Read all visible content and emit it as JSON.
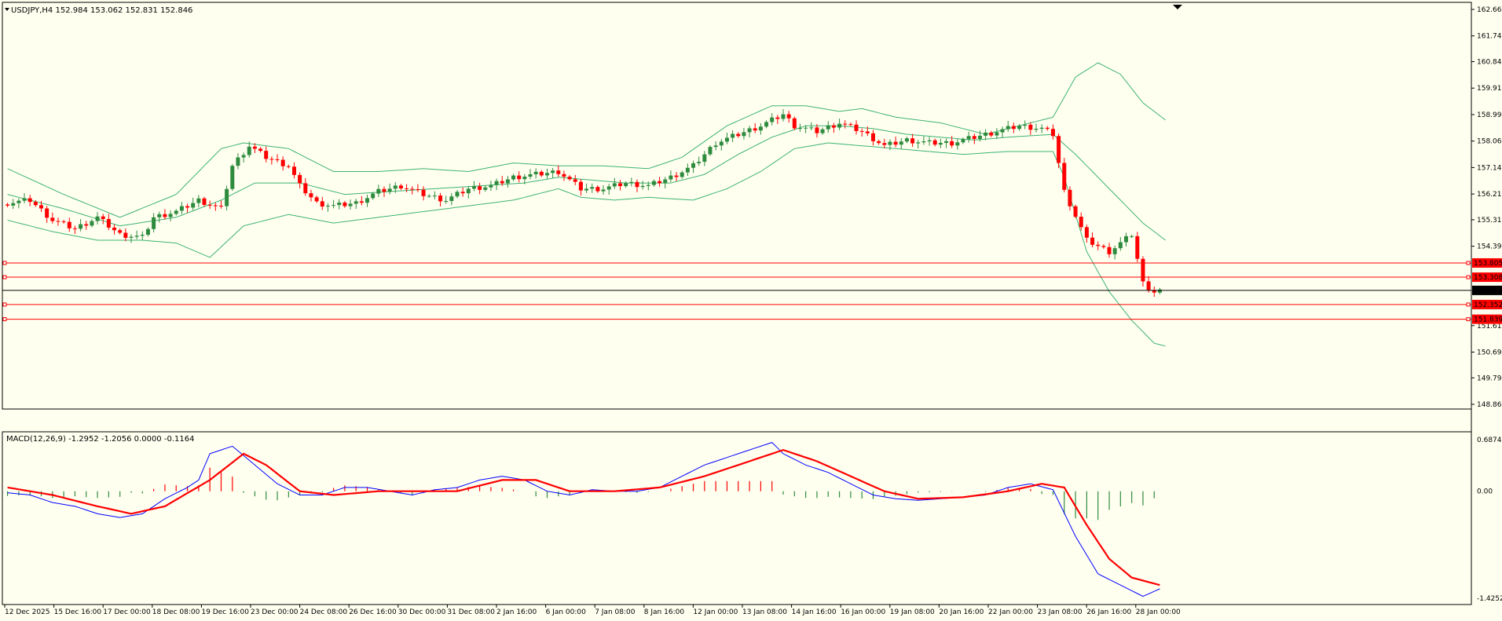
{
  "symbol_header": {
    "symbol": "USDJPY,H4",
    "ohlc": "152.984 153.062 152.831 152.846",
    "text": "USDJPY,H4  152.984 153.062 152.831 152.846"
  },
  "macd_header": {
    "text": "MACD(12,26,9) -1.2952 -1.2056 0.0000 -0.1164"
  },
  "colors": {
    "background": "#FFFFF0",
    "bull": "#2E8B3E",
    "bear": "#FF0000",
    "bands": "#3CB371",
    "macd_main": "#0000FF",
    "macd_signal": "#FF0000",
    "level_line": "#FF0000",
    "current_price_line": "#000000"
  },
  "chart_data": [
    {
      "type": "candlestick",
      "title": "USDJPY,H4",
      "ylim": [
        148.865,
        162.665
      ],
      "y_ticks": [
        "162.665",
        "161.740",
        "160.840",
        "159.915",
        "158.990",
        "158.065",
        "157.140",
        "156.215",
        "155.315",
        "154.390",
        "151.615",
        "150.690",
        "149.790",
        "148.865"
      ],
      "x_tick_labels": [
        "12 Dec 2025",
        "15 Dec 16:00",
        "17 Dec 00:00",
        "18 Dec 08:00",
        "19 Dec 16:00",
        "23 Dec 00:00",
        "24 Dec 08:00",
        "26 Dec 16:00",
        "30 Dec 00:00",
        "31 Dec 08:00",
        "2 Jan 16:00",
        "6 Jan 00:00",
        "7 Jan 08:00",
        "8 Jan 16:00",
        "12 Jan 00:00",
        "13 Jan 08:00",
        "14 Jan 16:00",
        "16 Jan 00:00",
        "19 Jan 08:00",
        "20 Jan 16:00",
        "22 Jan 00:00",
        "23 Jan 08:00",
        "26 Jan 16:00",
        "28 Jan 00:00"
      ],
      "current_price": {
        "value": 152.846,
        "label": "152.846"
      },
      "levels": [
        {
          "value": 153.805,
          "label": "153.805"
        },
        {
          "value": 153.308,
          "label": "153.308"
        },
        {
          "value": 152.352,
          "label": "152.352"
        },
        {
          "value": 151.839,
          "label": "151.839"
        }
      ],
      "close_path": [
        [
          0,
          155.9
        ],
        [
          4,
          156.0
        ],
        [
          8,
          155.3
        ],
        [
          12,
          155.0
        ],
        [
          16,
          155.4
        ],
        [
          20,
          154.8
        ],
        [
          24,
          154.7
        ],
        [
          26,
          155.4
        ],
        [
          30,
          155.6
        ],
        [
          34,
          156.0
        ],
        [
          38,
          155.7
        ],
        [
          40,
          157.2
        ],
        [
          43,
          157.9
        ],
        [
          46,
          157.5
        ],
        [
          50,
          157.2
        ],
        [
          52,
          156.5
        ],
        [
          55,
          155.9
        ],
        [
          58,
          155.8
        ],
        [
          62,
          155.9
        ],
        [
          66,
          156.3
        ],
        [
          70,
          156.5
        ],
        [
          74,
          156.2
        ],
        [
          78,
          156.0
        ],
        [
          82,
          156.4
        ],
        [
          86,
          156.5
        ],
        [
          90,
          156.8
        ],
        [
          94,
          156.9
        ],
        [
          98,
          157.0
        ],
        [
          102,
          156.4
        ],
        [
          106,
          156.4
        ],
        [
          110,
          156.6
        ],
        [
          114,
          156.5
        ],
        [
          118,
          156.8
        ],
        [
          122,
          157.2
        ],
        [
          126,
          158.0
        ],
        [
          130,
          158.3
        ],
        [
          134,
          158.6
        ],
        [
          138,
          159.0
        ],
        [
          140,
          158.6
        ],
        [
          144,
          158.4
        ],
        [
          148,
          158.7
        ],
        [
          152,
          158.4
        ],
        [
          156,
          157.9
        ],
        [
          160,
          158.1
        ],
        [
          164,
          158.0
        ],
        [
          168,
          158.0
        ],
        [
          172,
          158.2
        ],
        [
          176,
          158.4
        ],
        [
          180,
          158.6
        ],
        [
          184,
          158.5
        ],
        [
          186,
          158.3
        ],
        [
          188,
          156.3
        ],
        [
          192,
          154.6
        ],
        [
          196,
          154.2
        ],
        [
          200,
          154.8
        ],
        [
          202,
          153.1
        ],
        [
          204,
          152.8
        ],
        [
          205,
          152.846
        ]
      ],
      "bollinger_upper_path": [
        [
          0,
          157.1
        ],
        [
          10,
          156.2
        ],
        [
          20,
          155.4
        ],
        [
          30,
          156.2
        ],
        [
          38,
          157.8
        ],
        [
          42,
          158.0
        ],
        [
          50,
          157.8
        ],
        [
          58,
          157.0
        ],
        [
          66,
          157.0
        ],
        [
          74,
          157.1
        ],
        [
          82,
          157.0
        ],
        [
          90,
          157.3
        ],
        [
          98,
          157.2
        ],
        [
          106,
          157.2
        ],
        [
          114,
          157.1
        ],
        [
          120,
          157.5
        ],
        [
          128,
          158.6
        ],
        [
          136,
          159.3
        ],
        [
          142,
          159.3
        ],
        [
          148,
          159.1
        ],
        [
          152,
          159.2
        ],
        [
          158,
          158.9
        ],
        [
          166,
          158.7
        ],
        [
          174,
          158.3
        ],
        [
          182,
          158.7
        ],
        [
          186,
          158.9
        ],
        [
          190,
          160.3
        ],
        [
          194,
          160.8
        ],
        [
          198,
          160.4
        ],
        [
          202,
          159.4
        ],
        [
          206,
          158.8
        ]
      ],
      "bollinger_lower_path": [
        [
          0,
          155.3
        ],
        [
          8,
          154.9
        ],
        [
          16,
          154.6
        ],
        [
          24,
          154.6
        ],
        [
          30,
          154.5
        ],
        [
          36,
          154.0
        ],
        [
          42,
          155.1
        ],
        [
          50,
          155.5
        ],
        [
          58,
          155.2
        ],
        [
          66,
          155.4
        ],
        [
          74,
          155.6
        ],
        [
          82,
          155.8
        ],
        [
          90,
          156.0
        ],
        [
          98,
          156.4
        ],
        [
          102,
          156.1
        ],
        [
          108,
          156.0
        ],
        [
          114,
          156.1
        ],
        [
          122,
          156.0
        ],
        [
          128,
          156.4
        ],
        [
          134,
          157.0
        ],
        [
          140,
          157.8
        ],
        [
          146,
          158.0
        ],
        [
          152,
          157.9
        ],
        [
          158,
          157.8
        ],
        [
          164,
          157.7
        ],
        [
          170,
          157.6
        ],
        [
          178,
          157.7
        ],
        [
          186,
          157.7
        ],
        [
          188,
          156.8
        ],
        [
          192,
          154.2
        ],
        [
          196,
          152.8
        ],
        [
          200,
          151.8
        ],
        [
          204,
          151.0
        ],
        [
          206,
          150.9
        ]
      ],
      "bollinger_middle_path": [
        [
          0,
          156.2
        ],
        [
          10,
          155.7
        ],
        [
          20,
          155.1
        ],
        [
          30,
          155.4
        ],
        [
          38,
          156.0
        ],
        [
          44,
          156.6
        ],
        [
          52,
          156.6
        ],
        [
          60,
          156.2
        ],
        [
          68,
          156.3
        ],
        [
          76,
          156.4
        ],
        [
          84,
          156.5
        ],
        [
          92,
          156.6
        ],
        [
          98,
          156.8
        ],
        [
          104,
          156.7
        ],
        [
          110,
          156.6
        ],
        [
          118,
          156.6
        ],
        [
          124,
          156.9
        ],
        [
          130,
          157.6
        ],
        [
          136,
          158.2
        ],
        [
          142,
          158.6
        ],
        [
          148,
          158.6
        ],
        [
          154,
          158.5
        ],
        [
          160,
          158.3
        ],
        [
          166,
          158.2
        ],
        [
          172,
          158.1
        ],
        [
          178,
          158.2
        ],
        [
          186,
          158.3
        ],
        [
          190,
          157.6
        ],
        [
          194,
          156.8
        ],
        [
          198,
          156.0
        ],
        [
          202,
          155.2
        ],
        [
          206,
          154.6
        ]
      ]
    },
    {
      "type": "macd",
      "title": "MACD(12,26,9)",
      "ylim": [
        -1.4252,
        0.6874
      ],
      "y_ticks": [
        "0.6874",
        "0.00",
        "-1.4252"
      ],
      "main_path": [
        [
          0,
          -0.02
        ],
        [
          4,
          -0.05
        ],
        [
          8,
          -0.15
        ],
        [
          12,
          -0.2
        ],
        [
          16,
          -0.3
        ],
        [
          20,
          -0.35
        ],
        [
          24,
          -0.3
        ],
        [
          28,
          -0.1
        ],
        [
          32,
          0.05
        ],
        [
          34,
          0.15
        ],
        [
          36,
          0.5
        ],
        [
          40,
          0.6
        ],
        [
          44,
          0.35
        ],
        [
          48,
          0.1
        ],
        [
          52,
          -0.05
        ],
        [
          56,
          -0.05
        ],
        [
          60,
          0.05
        ],
        [
          64,
          0.05
        ],
        [
          68,
          0.0
        ],
        [
          72,
          -0.05
        ],
        [
          76,
          0.02
        ],
        [
          80,
          0.05
        ],
        [
          84,
          0.15
        ],
        [
          88,
          0.2
        ],
        [
          92,
          0.15
        ],
        [
          96,
          0.0
        ],
        [
          100,
          -0.05
        ],
        [
          104,
          0.02
        ],
        [
          108,
          0.0
        ],
        [
          112,
          0.0
        ],
        [
          116,
          0.05
        ],
        [
          120,
          0.2
        ],
        [
          124,
          0.35
        ],
        [
          128,
          0.45
        ],
        [
          132,
          0.55
        ],
        [
          136,
          0.65
        ],
        [
          138,
          0.5
        ],
        [
          142,
          0.35
        ],
        [
          146,
          0.25
        ],
        [
          150,
          0.1
        ],
        [
          154,
          -0.05
        ],
        [
          158,
          -0.1
        ],
        [
          162,
          -0.12
        ],
        [
          166,
          -0.1
        ],
        [
          170,
          -0.08
        ],
        [
          174,
          -0.05
        ],
        [
          178,
          0.05
        ],
        [
          182,
          0.1
        ],
        [
          186,
          0.02
        ],
        [
          190,
          -0.6
        ],
        [
          194,
          -1.1
        ],
        [
          198,
          -1.25
        ],
        [
          202,
          -1.4
        ],
        [
          205,
          -1.3
        ]
      ],
      "signal_path": [
        [
          0,
          0.05
        ],
        [
          8,
          -0.05
        ],
        [
          16,
          -0.2
        ],
        [
          22,
          -0.3
        ],
        [
          28,
          -0.2
        ],
        [
          36,
          0.15
        ],
        [
          42,
          0.5
        ],
        [
          46,
          0.35
        ],
        [
          52,
          0.0
        ],
        [
          58,
          -0.05
        ],
        [
          66,
          0.0
        ],
        [
          72,
          0.0
        ],
        [
          80,
          0.0
        ],
        [
          88,
          0.15
        ],
        [
          94,
          0.15
        ],
        [
          100,
          0.0
        ],
        [
          108,
          0.0
        ],
        [
          116,
          0.05
        ],
        [
          124,
          0.2
        ],
        [
          132,
          0.4
        ],
        [
          138,
          0.55
        ],
        [
          144,
          0.4
        ],
        [
          150,
          0.2
        ],
        [
          156,
          0.0
        ],
        [
          162,
          -0.1
        ],
        [
          170,
          -0.08
        ],
        [
          178,
          0.0
        ],
        [
          184,
          0.1
        ],
        [
          188,
          0.05
        ],
        [
          192,
          -0.45
        ],
        [
          196,
          -0.9
        ],
        [
          200,
          -1.15
        ],
        [
          205,
          -1.25
        ]
      ]
    }
  ]
}
